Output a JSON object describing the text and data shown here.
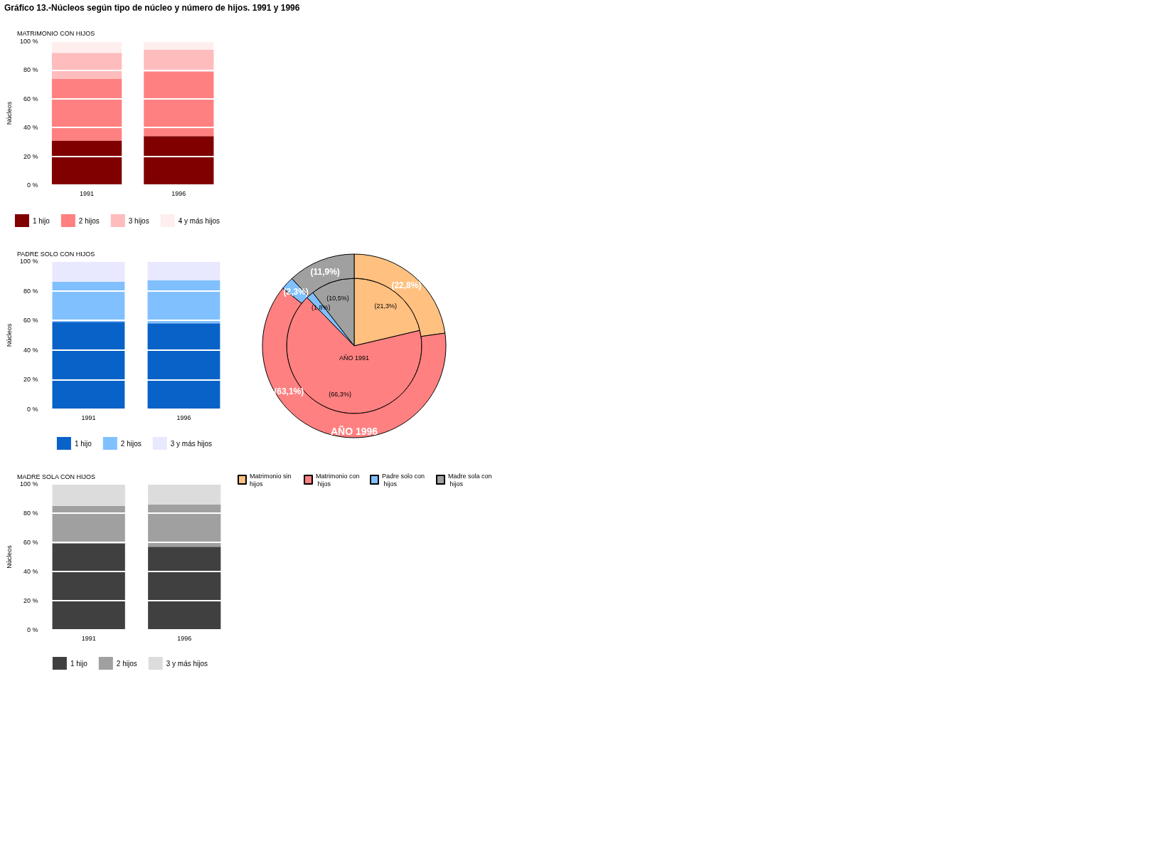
{
  "chart_data": [
    {
      "type": "other",
      "title": "Gráfico 13.-Núcleos según tipo de núcleo y número de hijos. 1991 y 1996"
    },
    {
      "type": "bar",
      "title": "MATRIMONIO CON HIJOS",
      "ylabel": "Núcleos",
      "categories": [
        "1991",
        "1996"
      ],
      "stacked": true,
      "series": [
        {
          "name": "1 hijo",
          "color": "#800000",
          "values": [
            31,
            34
          ]
        },
        {
          "name": "2 hijos",
          "color": "#ff8080",
          "values": [
            43,
            45
          ]
        },
        {
          "name": "3 hijos",
          "color": "#ffbcbc",
          "values": [
            18,
            15
          ]
        },
        {
          "name": "4 y más hijos",
          "color": "#ffeeee",
          "values": [
            8,
            6
          ]
        }
      ],
      "ylim": [
        0,
        100
      ],
      "yticks": [
        {
          "value": 0,
          "label": "0 %"
        },
        {
          "value": 20,
          "label": "20 %"
        },
        {
          "value": 40,
          "label": "40 %"
        },
        {
          "value": 60,
          "label": "60 %"
        },
        {
          "value": 80,
          "label": "80 %"
        },
        {
          "value": 100,
          "label": "100 %"
        }
      ],
      "grid": "y",
      "legend": "bottom"
    },
    {
      "type": "bar",
      "title": "PADRE SOLO CON HIJOS",
      "ylabel": "Núcleos",
      "categories": [
        "1991",
        "1996"
      ],
      "stacked": true,
      "series": [
        {
          "name": "1 hijo",
          "color": "#0862c8",
          "values": [
            59,
            58
          ]
        },
        {
          "name": "2 hijos",
          "color": "#80c0ff",
          "values": [
            27,
            29
          ]
        },
        {
          "name": "3 y más hijos",
          "color": "#e8e8ff",
          "values": [
            14,
            13
          ]
        }
      ],
      "ylim": [
        0,
        100
      ],
      "yticks": [
        {
          "value": 0,
          "label": "0 %"
        },
        {
          "value": 20,
          "label": "20 %"
        },
        {
          "value": 40,
          "label": "40 %"
        },
        {
          "value": 60,
          "label": "60 %"
        },
        {
          "value": 80,
          "label": "80 %"
        },
        {
          "value": 100,
          "label": "100 %"
        }
      ],
      "grid": "y",
      "legend": "bottom"
    },
    {
      "type": "pie",
      "categories": [
        "Matrimonio sin hijos",
        "Matrimonio con hijos",
        "Padre solo con hijos",
        "Madre sola con hijos"
      ],
      "colors": [
        "#ffc080",
        "#ff8080",
        "#80c0ff",
        "#a0a0a0"
      ],
      "series": [
        {
          "name": "AÑO 1991",
          "values": [
            21.3,
            66.3,
            1.8,
            10.5
          ],
          "value_labels": [
            "(21,3%)",
            "(66,3%)",
            "(1,8%)",
            "(10,5%)"
          ]
        },
        {
          "name": "AÑO 1996",
          "type": "donut",
          "values": [
            22.8,
            63.1,
            2.3,
            11.9
          ],
          "value_labels": [
            "(22,8%)",
            "(63,1%)",
            "(2,3%)",
            "(11,9%)"
          ]
        }
      ],
      "legend": "bottom"
    },
    {
      "type": "bar",
      "title": "MADRE SOLA CON HIJOS",
      "ylabel": "Núcleos",
      "categories": [
        "1991",
        "1996"
      ],
      "stacked": true,
      "series": [
        {
          "name": "1 hijo",
          "color": "#404040",
          "values": [
            59,
            57
          ]
        },
        {
          "name": "2 hijos",
          "color": "#a0a0a0",
          "values": [
            26,
            29
          ]
        },
        {
          "name": "3 y más hijos",
          "color": "#dcdcdc",
          "values": [
            15,
            14
          ]
        }
      ],
      "ylim": [
        0,
        100
      ],
      "yticks": [
        {
          "value": 0,
          "label": "0 %"
        },
        {
          "value": 20,
          "label": "20 %"
        },
        {
          "value": 40,
          "label": "40 %"
        },
        {
          "value": 60,
          "label": "60 %"
        },
        {
          "value": 80,
          "label": "80 %"
        },
        {
          "value": 100,
          "label": "100 %"
        }
      ],
      "grid": "y",
      "legend": "bottom"
    }
  ]
}
